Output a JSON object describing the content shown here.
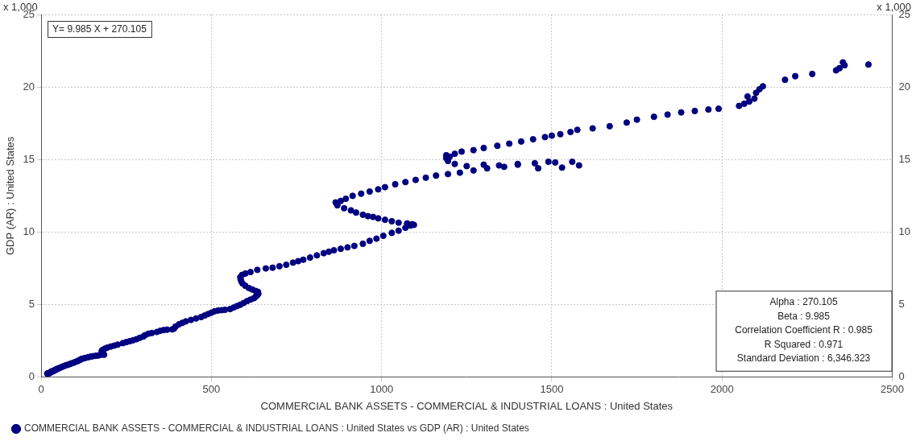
{
  "chart_data": {
    "type": "scatter",
    "x_label": "COMMERCIAL BANK ASSETS - COMMERCIAL & INDUSTRIAL LOANS : United States",
    "y_label": "GDP (AR) : United States",
    "y_unit_label": "x 1,000",
    "y2_unit_label": "x 1,000",
    "equation": "Y= 9.985 X + 270.105",
    "stats": [
      "Alpha : 270.105",
      "Beta : 9.985",
      "Correlation Coefficient R : 0.985",
      "R Squared : 0.971",
      "Standard Deviation : 6,346.323"
    ],
    "x": [
      18,
      19,
      20,
      21,
      22,
      23,
      25,
      27,
      28,
      29,
      30,
      31,
      30,
      31,
      33,
      35,
      36,
      38,
      39,
      40,
      41,
      42,
      44,
      45,
      47,
      49,
      52,
      55,
      58,
      62,
      66,
      70,
      75,
      80,
      85,
      90,
      95,
      100,
      106,
      110,
      115,
      118,
      125,
      130,
      138,
      145,
      152,
      160,
      168,
      175,
      180,
      185,
      182,
      180,
      178,
      182,
      188,
      195,
      205,
      215,
      225,
      240,
      250,
      260,
      270,
      280,
      290,
      300,
      305,
      315,
      325,
      340,
      350,
      360,
      370,
      385,
      390,
      395,
      405,
      415,
      425,
      440,
      455,
      470,
      480,
      490,
      500,
      510,
      520,
      530,
      540,
      555,
      565,
      575,
      585,
      595,
      605,
      615,
      625,
      630,
      635,
      638,
      637,
      630,
      620,
      610,
      600,
      592,
      588,
      586,
      585,
      590,
      600,
      615,
      635,
      660,
      680,
      700,
      720,
      740,
      755,
      770,
      790,
      810,
      830,
      845,
      860,
      880,
      900,
      920,
      945,
      965,
      985,
      1005,
      1030,
      1050,
      1070,
      1085,
      1095,
      1090,
      1075,
      1050,
      1030,
      1010,
      990,
      975,
      960,
      945,
      925,
      910,
      890,
      870,
      865,
      880,
      895,
      915,
      940,
      965,
      990,
      1010,
      1040,
      1070,
      1100,
      1130,
      1160,
      1195,
      1230,
      1270,
      1310,
      1360,
      1400,
      1450,
      1510,
      1560,
      1580,
      1530,
      1490,
      1460,
      1400,
      1345,
      1300,
      1250,
      1215,
      1195,
      1190,
      1200,
      1190,
      1215,
      1235,
      1270,
      1300,
      1340,
      1375,
      1410,
      1445,
      1480,
      1500,
      1525,
      1555,
      1575,
      1620,
      1670,
      1720,
      1750,
      1800,
      1840,
      1880,
      1920,
      1960,
      1990,
      2050,
      2065,
      2080,
      2095,
      2075,
      2100,
      2110,
      2120,
      2185,
      2215,
      2265,
      2335,
      2345,
      2355,
      2360,
      2430
    ],
    "series": [
      {
        "name": "COMMERCIAL BANK ASSETS - COMMERCIAL & INDUSTRIAL LOANS : United States vs GDP (AR) : United States",
        "color": "#000080",
        "marker": "circle",
        "values": [
          0.25,
          0.26,
          0.27,
          0.28,
          0.27,
          0.28,
          0.3,
          0.32,
          0.34,
          0.35,
          0.37,
          0.38,
          0.39,
          0.4,
          0.41,
          0.43,
          0.44,
          0.45,
          0.46,
          0.48,
          0.5,
          0.52,
          0.53,
          0.55,
          0.57,
          0.59,
          0.62,
          0.65,
          0.68,
          0.72,
          0.76,
          0.8,
          0.84,
          0.87,
          0.92,
          0.96,
          1.0,
          1.05,
          1.1,
          1.15,
          1.2,
          1.26,
          1.3,
          1.33,
          1.38,
          1.42,
          1.45,
          1.48,
          1.5,
          1.55,
          1.58,
          1.55,
          1.62,
          1.72,
          1.82,
          1.9,
          1.98,
          2.05,
          2.12,
          2.18,
          2.25,
          2.35,
          2.42,
          2.48,
          2.55,
          2.62,
          2.72,
          2.8,
          2.9,
          3.0,
          3.05,
          3.12,
          3.2,
          3.25,
          3.28,
          3.3,
          3.35,
          3.5,
          3.65,
          3.75,
          3.85,
          3.95,
          4.05,
          4.15,
          4.25,
          4.35,
          4.45,
          4.55,
          4.6,
          4.62,
          4.65,
          4.7,
          4.8,
          4.9,
          5.0,
          5.12,
          5.25,
          5.35,
          5.45,
          5.55,
          5.65,
          5.75,
          5.88,
          5.95,
          6.05,
          6.15,
          6.3,
          6.45,
          6.6,
          6.75,
          6.9,
          7.05,
          7.15,
          7.25,
          7.4,
          7.5,
          7.55,
          7.65,
          7.75,
          7.9,
          8.0,
          8.1,
          8.25,
          8.4,
          8.55,
          8.65,
          8.75,
          8.85,
          8.95,
          9.05,
          9.2,
          9.4,
          9.55,
          9.75,
          9.95,
          10.1,
          10.3,
          10.45,
          10.5,
          10.55,
          10.6,
          10.65,
          10.75,
          10.85,
          10.95,
          11.05,
          11.1,
          11.2,
          11.35,
          11.5,
          11.65,
          11.85,
          12.05,
          12.15,
          12.3,
          12.5,
          12.65,
          12.8,
          12.95,
          13.1,
          13.3,
          13.45,
          13.6,
          13.75,
          13.9,
          14.0,
          14.1,
          14.25,
          14.4,
          14.5,
          14.65,
          14.75,
          14.8,
          14.85,
          14.6,
          14.45,
          14.85,
          14.4,
          14.7,
          14.6,
          14.65,
          14.55,
          14.7,
          14.9,
          15.1,
          15.2,
          15.3,
          15.4,
          15.55,
          15.65,
          15.8,
          15.95,
          16.1,
          16.25,
          16.4,
          16.55,
          16.65,
          16.75,
          16.9,
          17.05,
          17.15,
          17.3,
          17.55,
          17.75,
          17.95,
          18.1,
          18.25,
          18.35,
          18.45,
          18.5,
          18.7,
          18.85,
          19.0,
          19.2,
          19.35,
          19.6,
          19.85,
          20.05,
          20.5,
          20.75,
          20.9,
          21.15,
          21.3,
          21.7,
          21.5,
          21.55
        ]
      }
    ],
    "xlim": [
      0,
      2500
    ],
    "xticks": [
      0,
      500,
      1000,
      1500,
      2000,
      2500
    ],
    "ylim": [
      0,
      25
    ],
    "yticks": [
      0,
      5,
      10,
      15,
      20,
      25
    ],
    "y2lim": [
      0,
      25
    ],
    "y2ticks": [
      0,
      5,
      10,
      15,
      20,
      25
    ],
    "grid": true,
    "legend": "bottom"
  }
}
